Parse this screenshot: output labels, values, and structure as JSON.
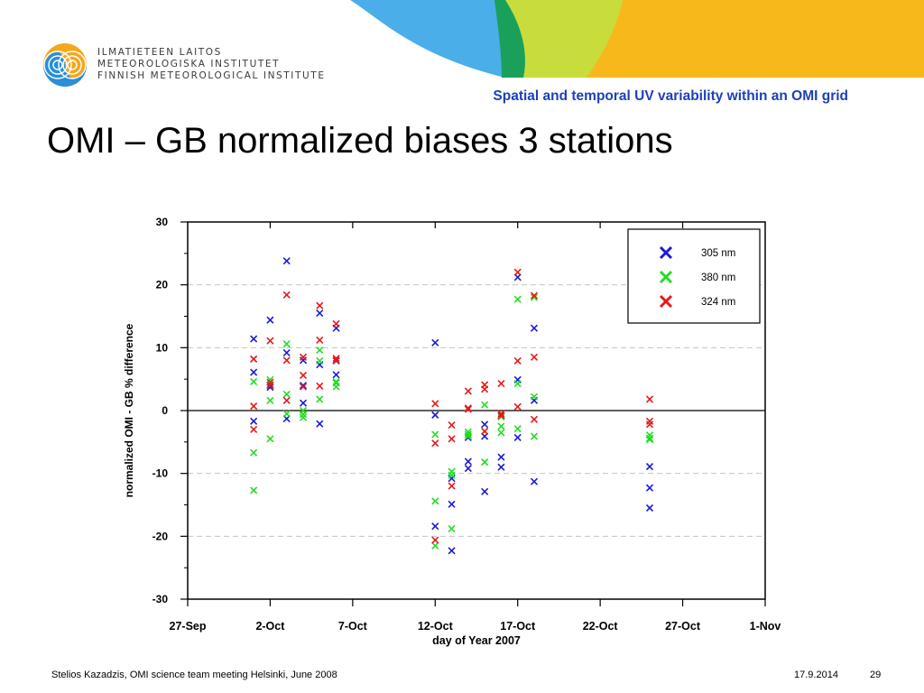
{
  "header": {
    "institute_lines": [
      "ILMATIETEEN LAITOS",
      "METEOROLOGISKA INSTITUTET",
      "FINNISH METEOROLOGICAL INSTITUTE"
    ],
    "subtitle": "Spatial and temporal UV variability within an OMI grid",
    "brand_colors": {
      "blue": "#4aaee8",
      "green": "#1aa05a",
      "lime": "#c8dc3c",
      "yellow": "#f7b81c"
    }
  },
  "slide": {
    "title": "OMI – GB normalized biases 3 stations"
  },
  "footer": {
    "left": "Stelios Kazadzis, OMI science team meeting Helsinki, June 2008",
    "date": "17.9.2014",
    "page": "29"
  },
  "chart_data": {
    "type": "scatter",
    "xlabel": "day of Year 2007",
    "ylabel": "normalized OMI - GB % difference",
    "ylim": [
      -30,
      30
    ],
    "xlim": [
      0,
      35
    ],
    "x_ticks": [
      {
        "x": 0,
        "label": "27-Sep"
      },
      {
        "x": 5,
        "label": "2-Oct"
      },
      {
        "x": 10,
        "label": "7-Oct"
      },
      {
        "x": 15,
        "label": "12-Oct"
      },
      {
        "x": 20,
        "label": "17-Oct"
      },
      {
        "x": 25,
        "label": "22-Oct"
      },
      {
        "x": 30,
        "label": "27-Oct"
      },
      {
        "x": 35,
        "label": "1-Nov"
      }
    ],
    "y_ticks": [
      -30,
      -20,
      -10,
      0,
      10,
      20,
      30
    ],
    "grid": true,
    "legend_position": "top-right",
    "series": [
      {
        "name": "305 nm",
        "color": "#1a1ad6",
        "points": [
          [
            4,
            11.4
          ],
          [
            4,
            6.1
          ],
          [
            4,
            -1.7
          ],
          [
            5,
            14.4
          ],
          [
            5,
            4.1
          ],
          [
            5,
            3.7
          ],
          [
            6,
            23.8
          ],
          [
            6,
            9.2
          ],
          [
            6,
            -1.3
          ],
          [
            7,
            8.0
          ],
          [
            7,
            4.0
          ],
          [
            7,
            1.2
          ],
          [
            8,
            15.5
          ],
          [
            8,
            7.3
          ],
          [
            8,
            -2.1
          ],
          [
            9,
            13.1
          ],
          [
            9,
            7.9
          ],
          [
            9,
            5.7
          ],
          [
            15,
            10.8
          ],
          [
            15,
            -0.7
          ],
          [
            15,
            -18.4
          ],
          [
            16,
            -10.8
          ],
          [
            16,
            -14.9
          ],
          [
            16,
            -22.3
          ],
          [
            17,
            -4.3
          ],
          [
            17,
            -8.1
          ],
          [
            17,
            -9.2
          ],
          [
            18,
            -2.2
          ],
          [
            18,
            -4.1
          ],
          [
            18,
            -12.9
          ],
          [
            19,
            -0.8
          ],
          [
            19,
            -7.4
          ],
          [
            19,
            -9.0
          ],
          [
            20,
            21.2
          ],
          [
            20,
            4.9
          ],
          [
            20,
            -4.3
          ],
          [
            21,
            13.1
          ],
          [
            21,
            1.6
          ],
          [
            21,
            -11.3
          ],
          [
            28,
            -8.9
          ],
          [
            28,
            -12.3
          ],
          [
            28,
            -15.5
          ]
        ]
      },
      {
        "name": "380 nm",
        "color": "#22dd22",
        "points": [
          [
            4,
            4.6
          ],
          [
            4,
            -6.7
          ],
          [
            4,
            -12.7
          ],
          [
            5,
            4.9
          ],
          [
            5,
            1.6
          ],
          [
            5,
            -4.5
          ],
          [
            6,
            10.6
          ],
          [
            6,
            2.6
          ],
          [
            6,
            -0.5
          ],
          [
            7,
            0.0
          ],
          [
            7,
            -0.6
          ],
          [
            7,
            -1.1
          ],
          [
            8,
            9.6
          ],
          [
            8,
            7.9
          ],
          [
            8,
            1.8
          ],
          [
            9,
            4.6
          ],
          [
            9,
            4.4
          ],
          [
            9,
            3.8
          ],
          [
            15,
            -3.8
          ],
          [
            15,
            -14.4
          ],
          [
            15,
            -21.5
          ],
          [
            16,
            -9.7
          ],
          [
            16,
            -10.3
          ],
          [
            16,
            -18.8
          ],
          [
            17,
            -3.4
          ],
          [
            17,
            -3.8
          ],
          [
            17,
            -4.1
          ],
          [
            18,
            0.9
          ],
          [
            18,
            -3.3
          ],
          [
            18,
            -8.2
          ],
          [
            19,
            -1.0
          ],
          [
            19,
            -2.5
          ],
          [
            19,
            -3.5
          ],
          [
            20,
            17.7
          ],
          [
            20,
            4.3
          ],
          [
            20,
            -2.9
          ],
          [
            21,
            18.0
          ],
          [
            21,
            2.2
          ],
          [
            21,
            -4.1
          ],
          [
            28,
            -3.9
          ],
          [
            28,
            -4.4
          ],
          [
            28,
            -4.6
          ]
        ]
      },
      {
        "name": "324 nm",
        "color": "#e81818",
        "points": [
          [
            4,
            8.2
          ],
          [
            4,
            0.7
          ],
          [
            4,
            -3.0
          ],
          [
            5,
            11.1
          ],
          [
            5,
            4.5
          ],
          [
            5,
            4.0
          ],
          [
            6,
            18.4
          ],
          [
            6,
            8.0
          ],
          [
            6,
            1.6
          ],
          [
            7,
            8.5
          ],
          [
            7,
            5.6
          ],
          [
            7,
            3.8
          ],
          [
            8,
            16.7
          ],
          [
            8,
            11.2
          ],
          [
            8,
            3.9
          ],
          [
            9,
            13.8
          ],
          [
            9,
            8.3
          ],
          [
            9,
            8.0
          ],
          [
            15,
            1.1
          ],
          [
            15,
            -5.2
          ],
          [
            15,
            -20.6
          ],
          [
            16,
            -2.3
          ],
          [
            16,
            -4.5
          ],
          [
            16,
            -12.0
          ],
          [
            17,
            3.1
          ],
          [
            17,
            0.4
          ],
          [
            17,
            0.2
          ],
          [
            18,
            4.1
          ],
          [
            18,
            3.4
          ],
          [
            18,
            -3.3
          ],
          [
            19,
            4.3
          ],
          [
            19,
            -0.5
          ],
          [
            19,
            -0.8
          ],
          [
            20,
            22.0
          ],
          [
            20,
            7.9
          ],
          [
            20,
            0.6
          ],
          [
            21,
            18.3
          ],
          [
            21,
            8.5
          ],
          [
            21,
            -1.4
          ],
          [
            28,
            1.8
          ],
          [
            28,
            -1.7
          ],
          [
            28,
            -2.2
          ]
        ]
      }
    ]
  }
}
